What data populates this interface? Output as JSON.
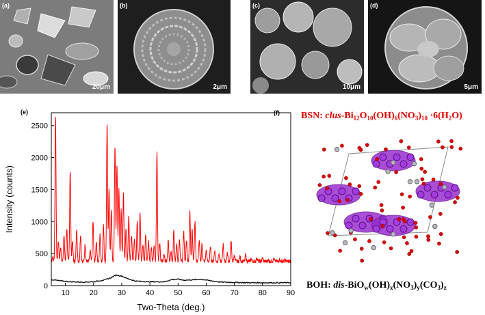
{
  "sem_panels": [
    {
      "label": "(a)",
      "scale_bar": "20μm"
    },
    {
      "label": "(b)",
      "scale_bar": "2μm"
    },
    {
      "label": "(c)",
      "scale_bar": "10μm"
    },
    {
      "label": "(d)",
      "scale_bar": "5μm"
    }
  ],
  "panel_e_label": "(e)",
  "panel_f_label": "(f)",
  "bsn": {
    "prefix": "BSN: ",
    "italic": "clus",
    "formula_parts": [
      "-Bi",
      "12",
      "O",
      "10",
      "(OH)",
      "6",
      "(NO",
      "3",
      ")",
      "10",
      "  ·6(H",
      "2",
      "O)"
    ]
  },
  "boh": {
    "prefix": "BOH: ",
    "italic": "dis",
    "formula_parts": [
      "-BiO",
      "w",
      "(OH)",
      "x",
      "(NO",
      "3",
      ")",
      "y",
      "(CO",
      "3",
      ")",
      "z"
    ]
  },
  "colors": {
    "bsn_curve": "#ff0000",
    "boh_curve": "#111111",
    "bsn_atoms": "#9b2fd0",
    "oxygen": "#e00000"
  },
  "chart_data": {
    "type": "line",
    "xlabel": "Two-Theta (deg.)",
    "ylabel": "Intensity (counts)",
    "xlim": [
      5,
      90
    ],
    "ylim": [
      0,
      2700
    ],
    "xticks": [
      10,
      20,
      30,
      40,
      50,
      60,
      70,
      80,
      90
    ],
    "yticks": [
      0,
      500,
      1000,
      1500,
      2000,
      2500
    ],
    "series": [
      {
        "name": "BSN",
        "color": "#ff0000",
        "baseline": 380,
        "peaks": [
          [
            5.5,
            450
          ],
          [
            6.5,
            2650
          ],
          [
            7.5,
            700
          ],
          [
            8.3,
            600
          ],
          [
            9.5,
            800
          ],
          [
            10.5,
            900
          ],
          [
            11.7,
            1800
          ],
          [
            12.5,
            700
          ],
          [
            14.0,
            900
          ],
          [
            15.4,
            800
          ],
          [
            17.0,
            650
          ],
          [
            18.8,
            550
          ],
          [
            19.8,
            1000
          ],
          [
            21.0,
            700
          ],
          [
            22.3,
            800
          ],
          [
            23.5,
            950
          ],
          [
            24.8,
            2550
          ],
          [
            25.5,
            1500
          ],
          [
            26.3,
            1200
          ],
          [
            27.6,
            2200
          ],
          [
            28.3,
            1900
          ],
          [
            29.0,
            1500
          ],
          [
            29.8,
            1200
          ],
          [
            30.6,
            1450
          ],
          [
            31.5,
            900
          ],
          [
            32.5,
            1100
          ],
          [
            33.5,
            800
          ],
          [
            34.5,
            750
          ],
          [
            35.5,
            1000
          ],
          [
            36.5,
            1150
          ],
          [
            37.5,
            650
          ],
          [
            38.5,
            800
          ],
          [
            39.5,
            700
          ],
          [
            40.5,
            600
          ],
          [
            41.5,
            650
          ],
          [
            42.5,
            2100
          ],
          [
            43.5,
            650
          ],
          [
            45.0,
            500
          ],
          [
            46.5,
            700
          ],
          [
            47.5,
            550
          ],
          [
            48.5,
            900
          ],
          [
            49.5,
            650
          ],
          [
            50.5,
            700
          ],
          [
            52.0,
            850
          ],
          [
            53.0,
            700
          ],
          [
            54.2,
            1150
          ],
          [
            55.0,
            900
          ],
          [
            56.0,
            1000
          ],
          [
            57.5,
            700
          ],
          [
            58.5,
            650
          ],
          [
            60.0,
            550
          ],
          [
            61.5,
            600
          ],
          [
            63.0,
            550
          ],
          [
            64.5,
            500
          ],
          [
            66.0,
            650
          ],
          [
            67.5,
            500
          ],
          [
            68.8,
            720
          ],
          [
            70.0,
            480
          ],
          [
            72.0,
            450
          ],
          [
            74.0,
            480
          ],
          [
            76.0,
            420
          ],
          [
            78.0,
            440
          ],
          [
            80.0,
            430
          ],
          [
            82.0,
            400
          ],
          [
            84.0,
            420
          ],
          [
            86.0,
            410
          ],
          [
            88.0,
            400
          ]
        ]
      },
      {
        "name": "BOH",
        "color": "#111111",
        "points": [
          [
            5,
            95
          ],
          [
            8,
            75
          ],
          [
            12,
            60
          ],
          [
            16,
            55
          ],
          [
            20,
            60
          ],
          [
            24,
            90
          ],
          [
            26,
            120
          ],
          [
            28,
            165
          ],
          [
            30,
            150
          ],
          [
            32,
            110
          ],
          [
            35,
            70
          ],
          [
            40,
            60
          ],
          [
            45,
            60
          ],
          [
            48,
            95
          ],
          [
            50,
            100
          ],
          [
            52,
            85
          ],
          [
            55,
            90
          ],
          [
            58,
            100
          ],
          [
            61,
            80
          ],
          [
            65,
            55
          ],
          [
            70,
            50
          ],
          [
            75,
            45
          ],
          [
            80,
            45
          ],
          [
            85,
            45
          ],
          [
            90,
            45
          ]
        ]
      }
    ]
  }
}
